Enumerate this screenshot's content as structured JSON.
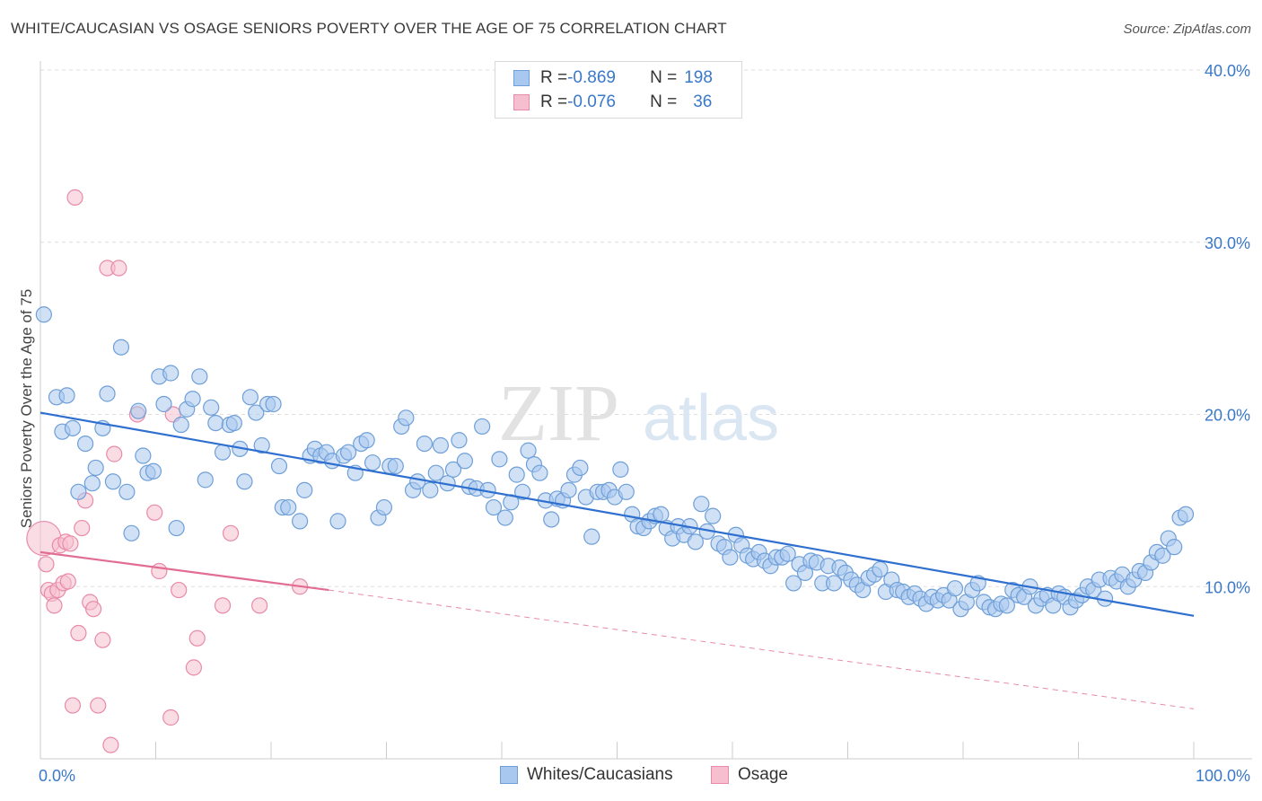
{
  "title": "WHITE/CAUCASIAN VS OSAGE SENIORS POVERTY OVER THE AGE OF 75 CORRELATION CHART",
  "source": "Source: ZipAtlas.com",
  "watermark": {
    "zip": "ZIP",
    "atlas": "atlas"
  },
  "colors": {
    "blue_fill": "#a9c8ef",
    "blue_stroke": "#6e9fd8",
    "blue_line": "#2e6fd0",
    "pink_fill": "#f6bfd0",
    "pink_stroke": "#e98aa8",
    "pink_line": "#e26d92",
    "axis_text": "#3a78c9",
    "grid": "#dddddd"
  },
  "legend": {
    "rows": [
      {
        "r_label": "R = ",
        "r_value": "-0.869",
        "n_label": "N = ",
        "n_value": "198",
        "series": "blue"
      },
      {
        "r_label": "R = ",
        "r_value": "-0.076",
        "n_label": "N = ",
        "n_value": "36",
        "series": "pink"
      }
    ],
    "bottom": [
      "Whites/Caucasians",
      "Osage"
    ]
  },
  "chart_data": {
    "type": "scatter",
    "title": "WHITE/CAUCASIAN VS OSAGE SENIORS POVERTY OVER THE AGE OF 75 CORRELATION CHART",
    "xlabel": "",
    "ylabel": "Seniors Poverty Over the Age of 75",
    "xlim": [
      0,
      100
    ],
    "ylim": [
      0,
      40
    ],
    "x_tick_labels": [
      "0.0%",
      "100.0%"
    ],
    "y_ticks": [
      10,
      20,
      30,
      40
    ],
    "y_tick_labels": [
      "10.0%",
      "20.0%",
      "30.0%",
      "40.0%"
    ],
    "grid": true,
    "legend_position": "top-center",
    "series": [
      {
        "name": "Whites/Caucasians",
        "color": "#a9c8ef",
        "trend": {
          "x": [
            0,
            100
          ],
          "y": [
            20.1,
            8.3
          ]
        },
        "points": [
          [
            0.3,
            25.8
          ],
          [
            1.4,
            21.0
          ],
          [
            2.3,
            21.1
          ],
          [
            1.9,
            19.0
          ],
          [
            2.8,
            19.2
          ],
          [
            3.9,
            18.3
          ],
          [
            3.3,
            15.5
          ],
          [
            4.5,
            16.0
          ],
          [
            4.8,
            16.9
          ],
          [
            5.4,
            19.2
          ],
          [
            5.8,
            21.2
          ],
          [
            6.3,
            16.1
          ],
          [
            7.0,
            23.9
          ],
          [
            7.5,
            15.5
          ],
          [
            7.9,
            13.1
          ],
          [
            8.5,
            20.2
          ],
          [
            8.9,
            17.6
          ],
          [
            9.3,
            16.6
          ],
          [
            9.8,
            16.7
          ],
          [
            10.3,
            22.2
          ],
          [
            10.7,
            20.6
          ],
          [
            11.3,
            22.4
          ],
          [
            11.8,
            13.4
          ],
          [
            12.2,
            19.4
          ],
          [
            12.7,
            20.3
          ],
          [
            13.2,
            20.9
          ],
          [
            13.8,
            22.2
          ],
          [
            14.3,
            16.2
          ],
          [
            14.8,
            20.4
          ],
          [
            15.2,
            19.5
          ],
          [
            15.8,
            17.8
          ],
          [
            16.4,
            19.4
          ],
          [
            16.8,
            19.5
          ],
          [
            17.3,
            18.0
          ],
          [
            17.7,
            16.1
          ],
          [
            18.2,
            21.0
          ],
          [
            18.7,
            20.1
          ],
          [
            19.2,
            18.2
          ],
          [
            19.7,
            20.6
          ],
          [
            20.2,
            20.6
          ],
          [
            20.7,
            17.0
          ],
          [
            21.0,
            14.6
          ],
          [
            21.5,
            14.6
          ],
          [
            22.5,
            13.8
          ],
          [
            22.9,
            15.6
          ],
          [
            23.4,
            17.6
          ],
          [
            23.8,
            18.0
          ],
          [
            24.3,
            17.6
          ],
          [
            24.8,
            17.8
          ],
          [
            25.3,
            17.3
          ],
          [
            25.8,
            13.8
          ],
          [
            26.3,
            17.6
          ],
          [
            26.7,
            17.8
          ],
          [
            27.3,
            16.6
          ],
          [
            27.8,
            18.3
          ],
          [
            28.3,
            18.5
          ],
          [
            28.8,
            17.2
          ],
          [
            29.3,
            14.0
          ],
          [
            29.8,
            14.6
          ],
          [
            30.3,
            17.0
          ],
          [
            30.8,
            17.0
          ],
          [
            31.3,
            19.3
          ],
          [
            31.7,
            19.8
          ],
          [
            32.3,
            15.6
          ],
          [
            32.7,
            16.1
          ],
          [
            33.3,
            18.3
          ],
          [
            33.8,
            15.6
          ],
          [
            34.3,
            16.6
          ],
          [
            34.7,
            18.2
          ],
          [
            35.3,
            16.0
          ],
          [
            35.8,
            16.8
          ],
          [
            36.3,
            18.5
          ],
          [
            36.8,
            17.3
          ],
          [
            37.2,
            15.8
          ],
          [
            37.8,
            15.7
          ],
          [
            38.3,
            19.3
          ],
          [
            38.8,
            15.6
          ],
          [
            39.3,
            14.6
          ],
          [
            39.8,
            17.4
          ],
          [
            40.3,
            14.0
          ],
          [
            40.8,
            14.9
          ],
          [
            41.3,
            16.5
          ],
          [
            41.8,
            15.5
          ],
          [
            42.3,
            17.9
          ],
          [
            42.8,
            17.1
          ],
          [
            43.3,
            16.6
          ],
          [
            43.8,
            15.0
          ],
          [
            44.3,
            13.9
          ],
          [
            44.8,
            15.1
          ],
          [
            45.3,
            15.0
          ],
          [
            45.8,
            15.6
          ],
          [
            46.3,
            16.5
          ],
          [
            46.8,
            16.9
          ],
          [
            47.3,
            15.2
          ],
          [
            47.8,
            12.9
          ],
          [
            48.3,
            15.5
          ],
          [
            48.8,
            15.5
          ],
          [
            49.3,
            15.6
          ],
          [
            49.8,
            15.2
          ],
          [
            50.3,
            16.8
          ],
          [
            50.8,
            15.5
          ],
          [
            51.3,
            14.2
          ],
          [
            51.8,
            13.5
          ],
          [
            52.3,
            13.4
          ],
          [
            52.8,
            13.8
          ],
          [
            53.3,
            14.1
          ],
          [
            53.8,
            14.2
          ],
          [
            54.3,
            13.4
          ],
          [
            54.8,
            12.8
          ],
          [
            55.3,
            13.5
          ],
          [
            55.8,
            13.0
          ],
          [
            56.3,
            13.5
          ],
          [
            56.8,
            12.6
          ],
          [
            57.3,
            14.8
          ],
          [
            57.8,
            13.2
          ],
          [
            58.3,
            14.1
          ],
          [
            58.8,
            12.5
          ],
          [
            59.3,
            12.3
          ],
          [
            59.8,
            11.7
          ],
          [
            60.3,
            13.0
          ],
          [
            60.8,
            12.4
          ],
          [
            61.3,
            11.8
          ],
          [
            61.8,
            11.6
          ],
          [
            62.3,
            12.0
          ],
          [
            62.8,
            11.5
          ],
          [
            63.3,
            11.2
          ],
          [
            63.8,
            11.7
          ],
          [
            64.3,
            11.7
          ],
          [
            64.8,
            11.9
          ],
          [
            65.3,
            10.2
          ],
          [
            65.8,
            11.3
          ],
          [
            66.3,
            10.8
          ],
          [
            66.8,
            11.5
          ],
          [
            67.3,
            11.4
          ],
          [
            67.8,
            10.2
          ],
          [
            68.3,
            11.2
          ],
          [
            68.8,
            10.2
          ],
          [
            69.3,
            11.1
          ],
          [
            69.8,
            10.8
          ],
          [
            70.3,
            10.4
          ],
          [
            70.8,
            10.1
          ],
          [
            71.3,
            9.8
          ],
          [
            71.8,
            10.5
          ],
          [
            72.3,
            10.7
          ],
          [
            72.8,
            11.0
          ],
          [
            73.3,
            9.7
          ],
          [
            73.8,
            10.4
          ],
          [
            74.3,
            9.8
          ],
          [
            74.8,
            9.7
          ],
          [
            75.3,
            9.4
          ],
          [
            75.8,
            9.6
          ],
          [
            76.3,
            9.3
          ],
          [
            76.8,
            9.0
          ],
          [
            77.3,
            9.4
          ],
          [
            77.8,
            9.2
          ],
          [
            78.3,
            9.5
          ],
          [
            78.8,
            9.2
          ],
          [
            79.3,
            9.9
          ],
          [
            79.8,
            8.7
          ],
          [
            80.3,
            9.1
          ],
          [
            80.8,
            9.8
          ],
          [
            81.3,
            10.2
          ],
          [
            81.8,
            9.1
          ],
          [
            82.3,
            8.8
          ],
          [
            82.8,
            8.7
          ],
          [
            83.3,
            9.0
          ],
          [
            83.8,
            8.9
          ],
          [
            84.3,
            9.8
          ],
          [
            84.8,
            9.5
          ],
          [
            85.3,
            9.4
          ],
          [
            85.8,
            10.0
          ],
          [
            86.3,
            8.9
          ],
          [
            86.8,
            9.3
          ],
          [
            87.3,
            9.5
          ],
          [
            87.8,
            8.9
          ],
          [
            88.3,
            9.6
          ],
          [
            88.8,
            9.4
          ],
          [
            89.3,
            8.8
          ],
          [
            89.8,
            9.2
          ],
          [
            90.3,
            9.5
          ],
          [
            90.8,
            10.0
          ],
          [
            91.3,
            9.8
          ],
          [
            91.8,
            10.4
          ],
          [
            92.3,
            9.3
          ],
          [
            92.8,
            10.5
          ],
          [
            93.3,
            10.3
          ],
          [
            93.8,
            10.7
          ],
          [
            94.3,
            10.0
          ],
          [
            94.8,
            10.4
          ],
          [
            95.3,
            10.9
          ],
          [
            95.8,
            10.8
          ],
          [
            96.3,
            11.4
          ],
          [
            96.8,
            12.0
          ],
          [
            97.3,
            11.8
          ],
          [
            97.8,
            12.8
          ],
          [
            98.3,
            12.3
          ],
          [
            98.8,
            14.0
          ],
          [
            99.3,
            14.2
          ]
        ]
      },
      {
        "name": "Osage",
        "color": "#f6bfd0",
        "trend": {
          "x": [
            0,
            25
          ],
          "y": [
            12.0,
            9.8
          ]
        },
        "trend_dashed": {
          "x": [
            25,
            100
          ],
          "y": [
            9.8,
            2.9
          ]
        },
        "points": [
          [
            0.3,
            12.8
          ],
          [
            0.5,
            11.3
          ],
          [
            0.7,
            9.8
          ],
          [
            1.0,
            9.6
          ],
          [
            1.2,
            8.9
          ],
          [
            1.5,
            9.8
          ],
          [
            1.7,
            12.4
          ],
          [
            2.0,
            10.2
          ],
          [
            2.2,
            12.6
          ],
          [
            2.4,
            10.3
          ],
          [
            2.6,
            12.5
          ],
          [
            2.8,
            3.1
          ],
          [
            3.0,
            32.6
          ],
          [
            3.3,
            7.3
          ],
          [
            3.6,
            13.4
          ],
          [
            3.9,
            15.0
          ],
          [
            4.3,
            9.1
          ],
          [
            4.6,
            8.7
          ],
          [
            5.0,
            3.1
          ],
          [
            5.4,
            6.9
          ],
          [
            5.8,
            28.5
          ],
          [
            6.1,
            0.8
          ],
          [
            6.4,
            17.7
          ],
          [
            6.8,
            28.5
          ],
          [
            8.4,
            20.0
          ],
          [
            9.9,
            14.3
          ],
          [
            10.3,
            10.9
          ],
          [
            11.3,
            2.4
          ],
          [
            11.5,
            20.0
          ],
          [
            12.0,
            9.8
          ],
          [
            13.3,
            5.3
          ],
          [
            13.6,
            7.0
          ],
          [
            15.8,
            8.9
          ],
          [
            16.5,
            13.1
          ],
          [
            19.0,
            8.9
          ],
          [
            22.5,
            10.0
          ]
        ]
      }
    ]
  }
}
